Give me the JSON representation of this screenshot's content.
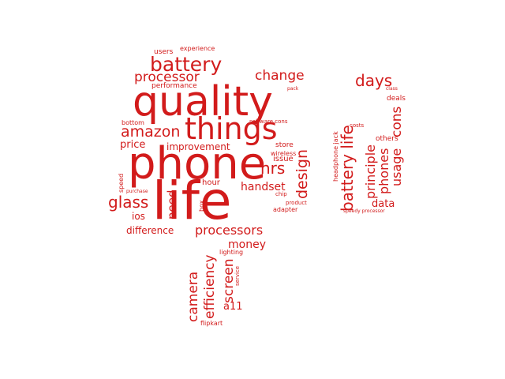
{
  "colors": {
    "word": "#d21b1b",
    "background": "#ffffff"
  },
  "words": [
    {
      "text": "life"
    },
    {
      "text": "phone"
    },
    {
      "text": "quality"
    },
    {
      "text": "things"
    },
    {
      "text": "battery"
    },
    {
      "text": "processor"
    },
    {
      "text": "amazon"
    },
    {
      "text": "change"
    },
    {
      "text": "days"
    },
    {
      "text": "battery life"
    },
    {
      "text": "design"
    },
    {
      "text": "hrs"
    },
    {
      "text": "glass"
    },
    {
      "text": "processors"
    },
    {
      "text": "camera"
    },
    {
      "text": "efficiency"
    },
    {
      "text": "screen"
    },
    {
      "text": "cons"
    },
    {
      "text": "usage"
    },
    {
      "text": "phones"
    },
    {
      "text": "principle"
    },
    {
      "text": "handset"
    },
    {
      "text": "money"
    },
    {
      "text": "need"
    },
    {
      "text": "price"
    },
    {
      "text": "improvement"
    },
    {
      "text": "difference"
    },
    {
      "text": "data"
    },
    {
      "text": "a11"
    },
    {
      "text": "ios"
    },
    {
      "text": "hour"
    },
    {
      "text": "issue"
    },
    {
      "text": "store"
    },
    {
      "text": "wireless"
    },
    {
      "text": "others"
    },
    {
      "text": "deals"
    },
    {
      "text": "users"
    },
    {
      "text": "experience"
    },
    {
      "text": "performance"
    },
    {
      "text": "bottom"
    },
    {
      "text": "software cons"
    },
    {
      "text": "chip"
    },
    {
      "text": "product"
    },
    {
      "text": "adapter"
    },
    {
      "text": "box"
    },
    {
      "text": "speed"
    },
    {
      "text": "purchase"
    },
    {
      "text": "lighting"
    },
    {
      "text": "service"
    },
    {
      "text": "flipkart"
    },
    {
      "text": "headphone jack"
    },
    {
      "text": "costs"
    },
    {
      "text": "pack"
    },
    {
      "text": "class"
    },
    {
      "text": "speedy processor"
    }
  ]
}
